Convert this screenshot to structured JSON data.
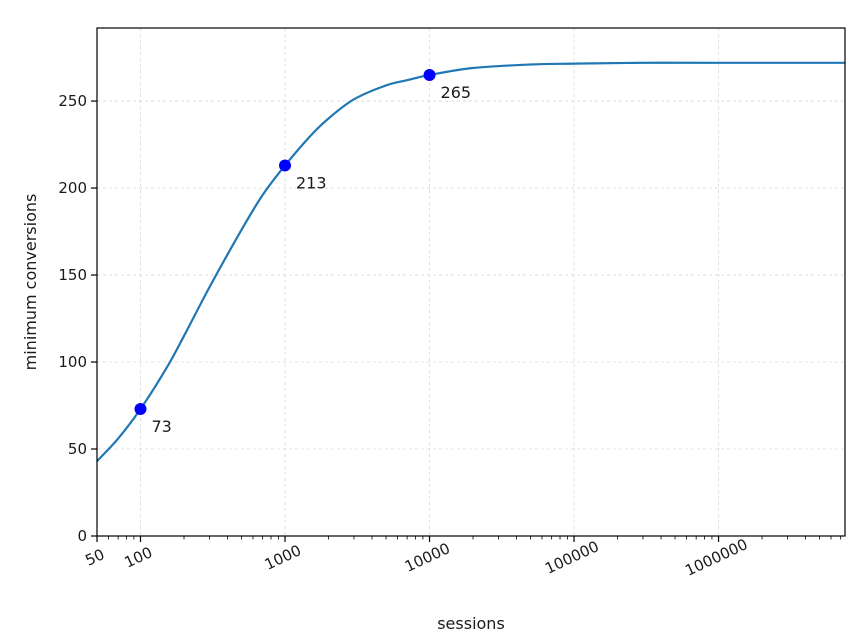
{
  "chart_data": {
    "type": "line",
    "title": "",
    "xlabel": "sessions",
    "ylabel": "minimum conversions",
    "xscale": "log",
    "xlim": [
      50,
      7500000
    ],
    "ylim": [
      0,
      292
    ],
    "grid": true,
    "x_ticks": [
      50,
      100,
      1000,
      10000,
      100000,
      1000000
    ],
    "x_tick_labels": [
      "50",
      "100",
      "1000",
      "10000",
      "100000",
      "1000000"
    ],
    "y_ticks": [
      0,
      50,
      100,
      150,
      200,
      250
    ],
    "y_tick_labels": [
      "0",
      "50",
      "100",
      "150",
      "200",
      "250"
    ],
    "series": [
      {
        "color": "#1f77b4",
        "x": [
          50,
          70,
          100,
          150,
          200,
          300,
          500,
          700,
          1000,
          1500,
          2000,
          3000,
          5000,
          7000,
          10000,
          20000,
          50000,
          100000,
          300000,
          1000000,
          7500000
        ],
        "y": [
          43,
          56,
          73,
          96,
          115,
          143,
          176,
          196,
          213,
          230,
          240,
          251,
          259,
          262,
          265,
          269,
          271,
          271.5,
          272,
          272,
          272
        ]
      }
    ],
    "highlighted_points": [
      {
        "x": 100,
        "y": 73,
        "label": "73"
      },
      {
        "x": 1000,
        "y": 213,
        "label": "213"
      },
      {
        "x": 10000,
        "y": 265,
        "label": "265"
      }
    ],
    "point_color": "#0000ff"
  }
}
